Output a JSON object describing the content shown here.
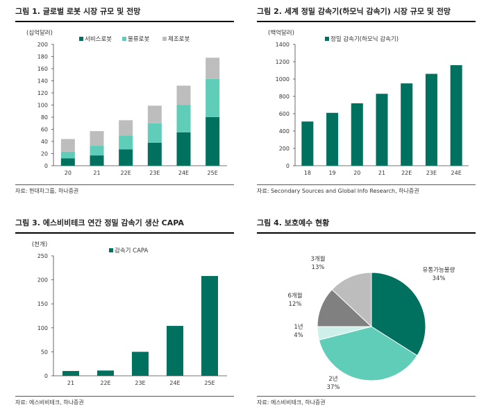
{
  "colors": {
    "dark_teal": "#00705F",
    "light_teal": "#5FCDB8",
    "gray": "#BDBDBD",
    "dark_gray": "#808080",
    "pale": "#CFEFEA"
  },
  "chart_data": [
    {
      "type": "bar",
      "stacked": true,
      "panel_title": "그림 1. 글로벌 로봇 시장 규모 및 전망",
      "ylabel": "(십억달러)",
      "ylim": [
        0,
        200
      ],
      "yticks": [
        0,
        20,
        40,
        60,
        80,
        100,
        120,
        140,
        160,
        180,
        200
      ],
      "categories": [
        "20",
        "21",
        "22E",
        "23E",
        "24E",
        "25E"
      ],
      "series": [
        {
          "name": "서비스로봇",
          "color": "#00705F",
          "values": [
            12,
            17,
            27,
            38,
            55,
            80
          ]
        },
        {
          "name": "물류로봇",
          "color": "#5FCDB8",
          "values": [
            11,
            16,
            23,
            32,
            45,
            63
          ]
        },
        {
          "name": "제조로봇",
          "color": "#BDBDBD",
          "values": [
            21,
            24,
            25,
            29,
            32,
            35
          ]
        }
      ],
      "source": "자료: 현대차그룹, 하나증권"
    },
    {
      "type": "bar",
      "panel_title": "그림 2. 세계 정밀 감속기(하모닉 감속기) 시장 규모 및 전망",
      "ylabel": "(백억달러)",
      "ylim": [
        0,
        1400
      ],
      "yticks": [
        0,
        200,
        400,
        600,
        800,
        1000,
        1200,
        1400
      ],
      "categories": [
        "18",
        "19",
        "20",
        "21",
        "22E",
        "23E",
        "24E"
      ],
      "series": [
        {
          "name": "정밀 감속기(하모닉 감속기)",
          "color": "#00705F",
          "values": [
            510,
            610,
            720,
            830,
            950,
            1060,
            1160
          ]
        }
      ],
      "source": "자료: Secondary Sources and Global Info Research, 하나증권"
    },
    {
      "type": "bar",
      "panel_title": "그림 3. 에스비비테크 연간 정밀 감속기 생산 CAPA",
      "ylabel": "(천개)",
      "ylim": [
        0,
        250
      ],
      "yticks": [
        0,
        50,
        100,
        150,
        200,
        250
      ],
      "categories": [
        "21",
        "22E",
        "23E",
        "24E",
        "25E"
      ],
      "series": [
        {
          "name": "감속기 CAPA",
          "color": "#00705F",
          "values": [
            10,
            11,
            50,
            104,
            208
          ]
        }
      ],
      "source": "자료: 에스비비테크, 하나증권"
    },
    {
      "type": "pie",
      "panel_title": "그림 4. 보호예수 현황",
      "slices": [
        {
          "label": "유통가능물량",
          "pct": "34%",
          "value": 34,
          "color": "#00705F"
        },
        {
          "label": "2년",
          "pct": "37%",
          "value": 37,
          "color": "#5FCDB8"
        },
        {
          "label": "1년",
          "pct": "4%",
          "value": 4,
          "color": "#CFEFEA"
        },
        {
          "label": "6개월",
          "pct": "12%",
          "value": 12,
          "color": "#808080"
        },
        {
          "label": "3개월",
          "pct": "13%",
          "value": 13,
          "color": "#BDBDBD"
        }
      ],
      "source": "자료: 에스비비테크, 하나증권"
    }
  ]
}
